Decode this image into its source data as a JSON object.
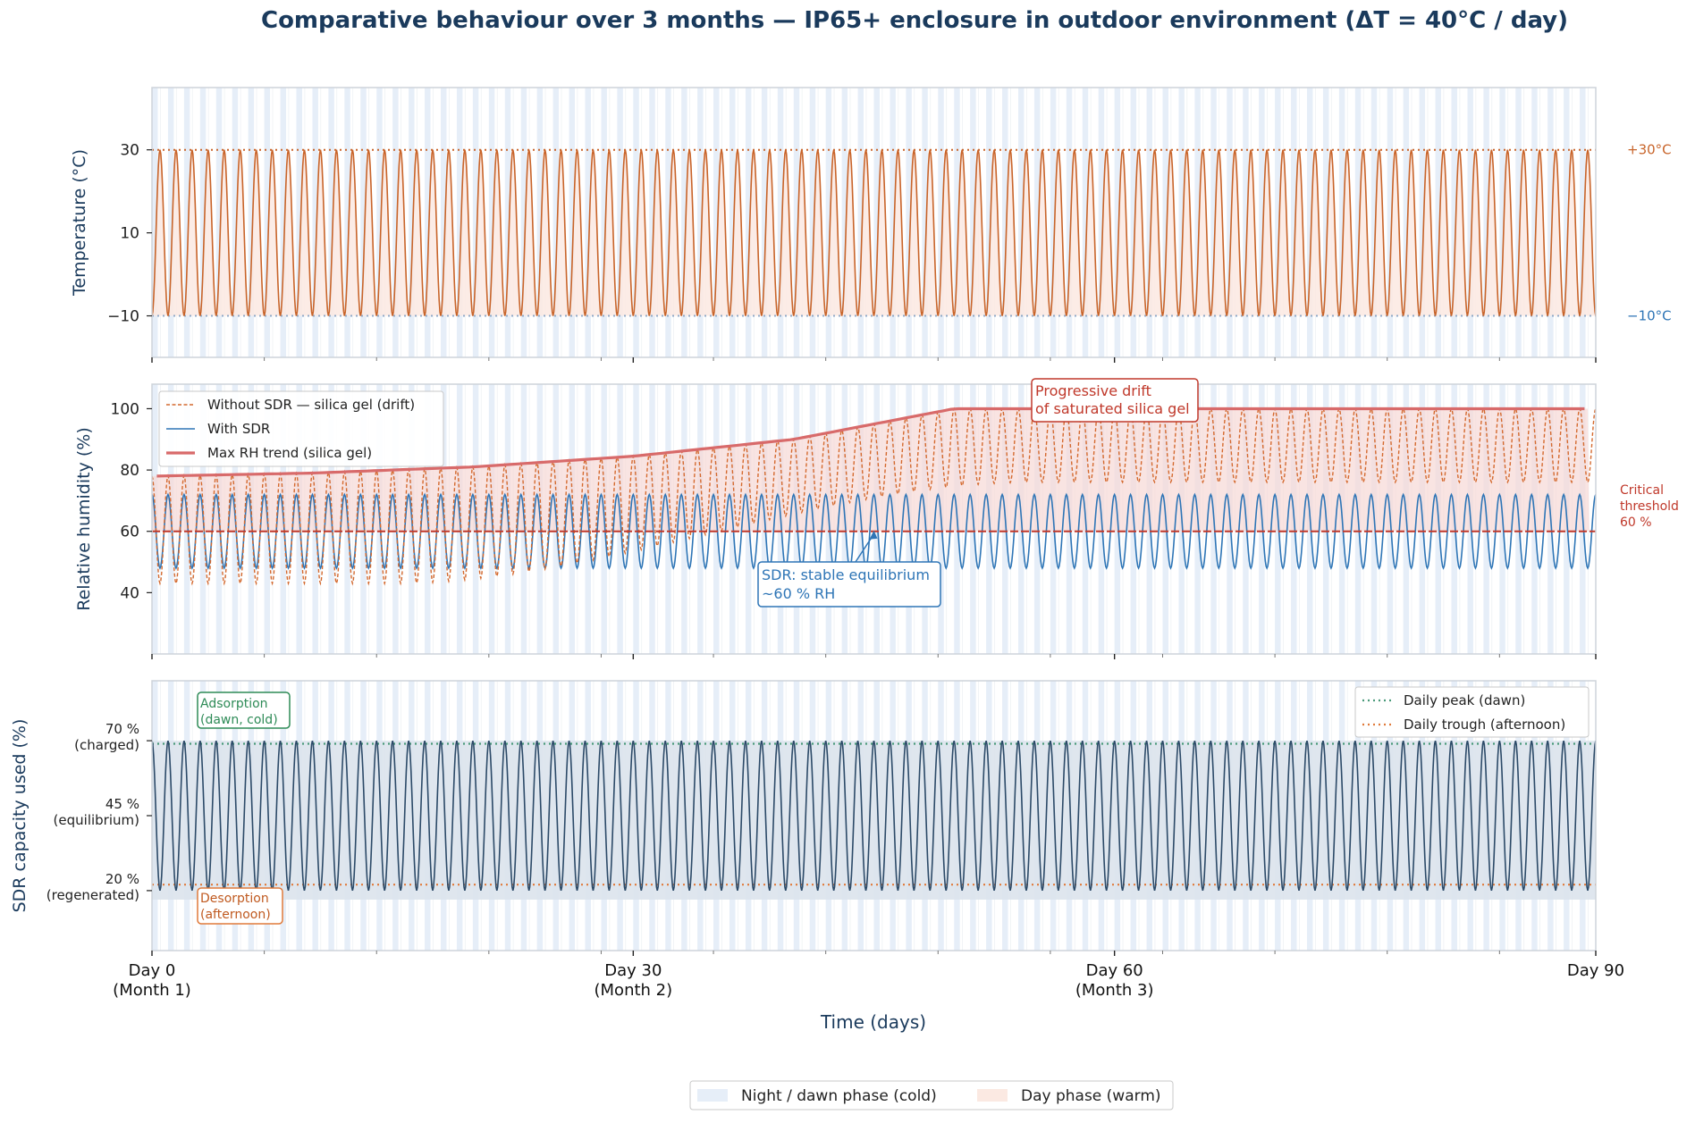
{
  "title": "Comparative behaviour over 3 months — IP65+ enclosure in outdoor environment (ΔT = 40°C / day)",
  "colors": {
    "temp": "#c8642a",
    "rh_without": "#d4692e",
    "rh_with": "#2e75b6",
    "trend": "#d86a6a",
    "threshold": "#c0392b",
    "sdr": "#2c4a68",
    "peak": "#4a9a7a",
    "trough": "#e07a3a",
    "night": "#e6eef8",
    "day": "#fbe9e2",
    "axis_label": "#1a3a5c",
    "frame": "#cdd3da",
    "green_box": "#2e8b57"
  },
  "chart_data": [
    {
      "type": "line",
      "panel": "temperature",
      "ylabel": "Temperature (°C)",
      "xlim": [
        0,
        90
      ],
      "ylim": [
        -20,
        45
      ],
      "yticks": [
        "−10",
        "10",
        "30"
      ],
      "ytick_values": [
        -10,
        10,
        30
      ],
      "series": [
        {
          "name": "Temperature",
          "min": -10,
          "max": 30,
          "period_days": 1
        }
      ],
      "reference_lines": [
        {
          "label": "+30°C",
          "value": 30
        },
        {
          "label": "−10°C",
          "value": -10
        }
      ]
    },
    {
      "type": "line",
      "panel": "humidity",
      "ylabel": "Relative humidity (%)",
      "xlim": [
        0,
        90
      ],
      "ylim": [
        20,
        108
      ],
      "yticks": [
        "40",
        "60",
        "80",
        "100"
      ],
      "ytick_values": [
        40,
        60,
        80,
        100
      ],
      "legend": [
        "Without SDR — silica gel (drift)",
        "With SDR",
        "Max RH trend (silica gel)"
      ],
      "series": [
        {
          "name": "Without SDR — silica gel (drift)",
          "start_range": [
            43,
            78
          ],
          "end_range": [
            76,
            100
          ]
        },
        {
          "name": "With SDR",
          "min": 48,
          "max": 72
        },
        {
          "name": "Max RH trend (silica gel)",
          "x": [
            0,
            10,
            20,
            30,
            40,
            50,
            90
          ],
          "values": [
            78,
            79,
            81,
            84.5,
            90,
            100,
            100
          ]
        }
      ],
      "threshold": {
        "value": 60,
        "label_lines": [
          "Critical",
          "threshold",
          "60 %"
        ]
      },
      "annotations": [
        {
          "lines": [
            "Progressive drift",
            "of saturated silica gel"
          ]
        },
        {
          "lines": [
            "SDR: stable equilibrium",
            "~60 % RH"
          ],
          "arrow_to": [
            45,
            60
          ]
        }
      ]
    },
    {
      "type": "area",
      "panel": "sdr_capacity",
      "ylabel": "SDR capacity used (%)",
      "xlim": [
        0,
        90
      ],
      "ylim": [
        0,
        90
      ],
      "yticks": [
        {
          "value": 70,
          "lines": [
            "70 %",
            "(charged)"
          ]
        },
        {
          "value": 45,
          "lines": [
            "45 %",
            "(equilibrium)"
          ]
        },
        {
          "value": 20,
          "lines": [
            "20 %",
            "(regenerated)"
          ]
        }
      ],
      "series": [
        {
          "name": "SDR capacity",
          "min": 20,
          "max": 70,
          "period_days": 1
        }
      ],
      "legend": [
        "Daily peak (dawn)",
        "Daily trough (afternoon)"
      ],
      "reference_lines": [
        {
          "label": "Daily peak (dawn)",
          "value": 69
        },
        {
          "label": "Daily trough (afternoon)",
          "value": 22
        }
      ],
      "annotations": [
        {
          "lines": [
            "Adsorption",
            "(dawn, cold)"
          ]
        },
        {
          "lines": [
            "Desorption",
            "(afternoon)"
          ]
        }
      ]
    }
  ],
  "xaxis": {
    "label": "Time (days)",
    "ticks": [
      {
        "value": 0,
        "lines": [
          "Day 0",
          "(Month 1)"
        ]
      },
      {
        "value": 30,
        "lines": [
          "Day 30",
          "(Month 2)"
        ]
      },
      {
        "value": 60,
        "lines": [
          "Day 60",
          "(Month 3)"
        ]
      },
      {
        "value": 90,
        "lines": [
          "Day 90"
        ]
      }
    ]
  },
  "bottom_legend": [
    "Night / dawn phase (cold)",
    "Day phase (warm)"
  ]
}
